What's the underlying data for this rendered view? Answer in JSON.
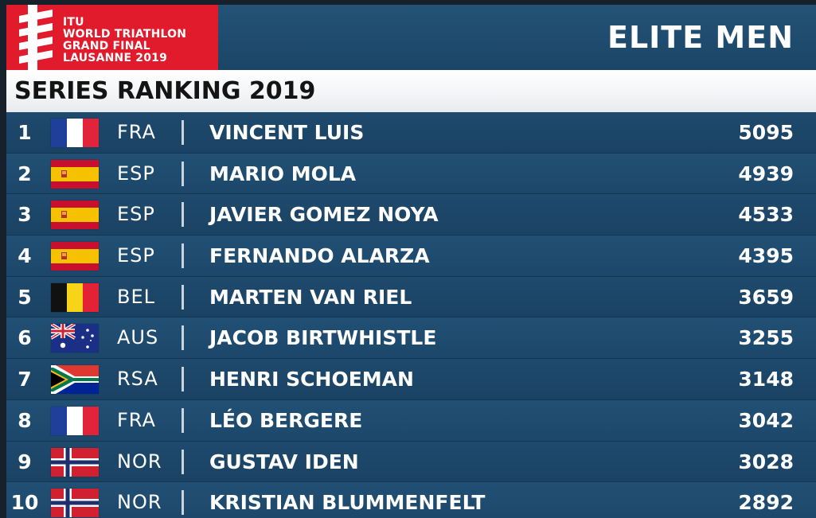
{
  "header": {
    "logo_lines": [
      "ITU",
      "WORLD TRIATHLON",
      "GRAND FINAL",
      "LAUSANNE 2019"
    ],
    "category": "ELITE MEN",
    "logo_color": "#e11b2c"
  },
  "subtitle": "SERIES RANKING 2019",
  "rankings": [
    {
      "rank": "1",
      "country": "FRA",
      "flag": "france-flag-icon",
      "name": "VINCENT LUIS",
      "points": "5095"
    },
    {
      "rank": "2",
      "country": "ESP",
      "flag": "spain-flag-icon",
      "name": "MARIO MOLA",
      "points": "4939"
    },
    {
      "rank": "3",
      "country": "ESP",
      "flag": "spain-flag-icon",
      "name": "JAVIER GOMEZ NOYA",
      "points": "4533"
    },
    {
      "rank": "4",
      "country": "ESP",
      "flag": "spain-flag-icon",
      "name": "FERNANDO ALARZA",
      "points": "4395"
    },
    {
      "rank": "5",
      "country": "BEL",
      "flag": "belgium-flag-icon",
      "name": "MARTEN VAN RIEL",
      "points": "3659"
    },
    {
      "rank": "6",
      "country": "AUS",
      "flag": "australia-flag-icon",
      "name": "JACOB BIRTWHISTLE",
      "points": "3255"
    },
    {
      "rank": "7",
      "country": "RSA",
      "flag": "south-africa-flag-icon",
      "name": "HENRI SCHOEMAN",
      "points": "3148"
    },
    {
      "rank": "8",
      "country": "FRA",
      "flag": "france-flag-icon",
      "name": "LÉO BERGERE",
      "points": "3042"
    },
    {
      "rank": "9",
      "country": "NOR",
      "flag": "norway-flag-icon",
      "name": "GUSTAV IDEN",
      "points": "3028"
    },
    {
      "rank": "10",
      "country": "NOR",
      "flag": "norway-flag-icon",
      "name": "KRISTIAN BLUMMENFELT",
      "points": "2892"
    }
  ]
}
